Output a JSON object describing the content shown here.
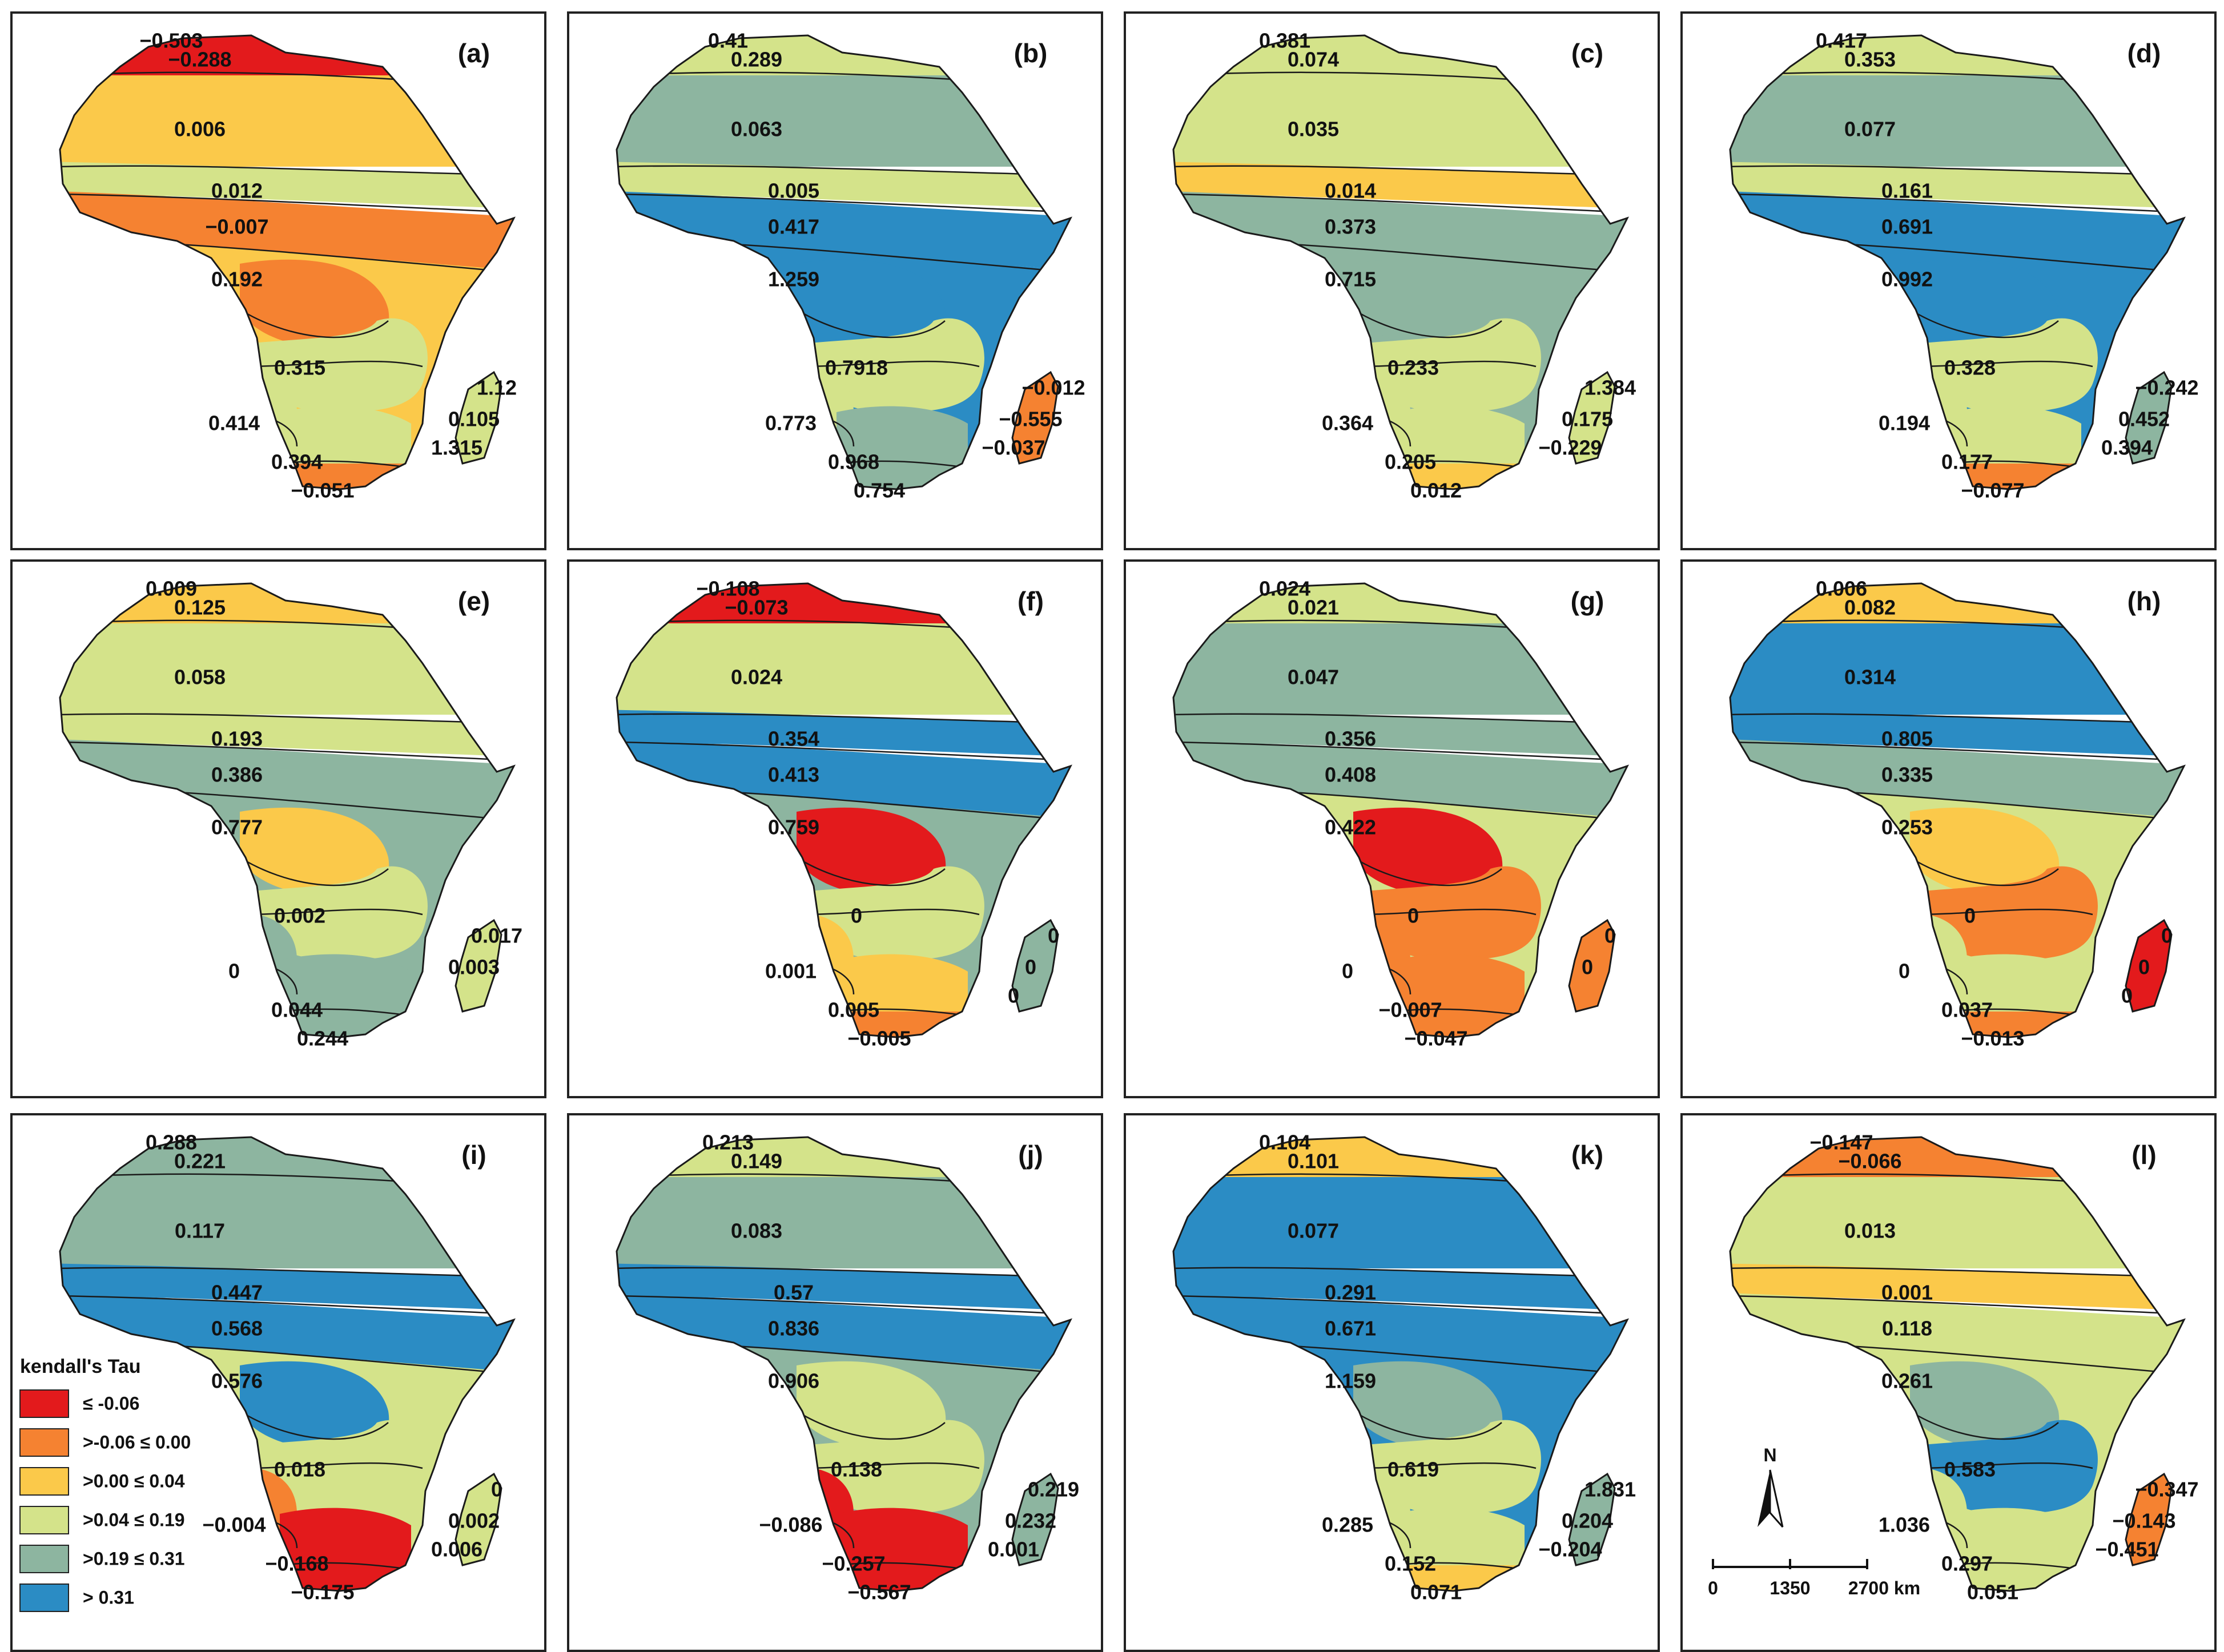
{
  "colors": {
    "cat1": "#e31a1c",
    "cat2": "#f58231",
    "cat3": "#fbc94a",
    "cat4": "#d4e38a",
    "cat5": "#8db5a0",
    "cat6": "#2b8cc4"
  },
  "legend": {
    "title": "kendall's Tau",
    "items": [
      {
        "label": "≤ -0.06",
        "color": "#e31a1c"
      },
      {
        "label": ">-0.06 ≤ 0.00",
        "color": "#f58231"
      },
      {
        "label": ">0.00 ≤ 0.04",
        "color": "#fbc94a"
      },
      {
        "label": ">0.04 ≤ 0.19",
        "color": "#d4e38a"
      },
      {
        "label": ">0.19 ≤ 0.31",
        "color": "#8db5a0"
      },
      {
        "label": "> 0.31",
        "color": "#2b8cc4"
      }
    ]
  },
  "north_arrow": "N",
  "scale_bar": {
    "ticks": [
      "0",
      "1350",
      "2700 km"
    ]
  },
  "panels": [
    {
      "id": "(a)",
      "zones": [
        "c1",
        "c3",
        "c4",
        "c2",
        "c3",
        "c2",
        "c4",
        "c4",
        "c4",
        "c2"
      ],
      "madagascar": [
        "c4",
        "c4",
        "c4"
      ],
      "labels": [
        "−0.503",
        "−0.288",
        "0.006",
        "0.012",
        "−0.007",
        "0.192",
        "0.315",
        "0.414",
        "0.394",
        "−0.051",
        "1.12",
        "0.105",
        "1.315"
      ]
    },
    {
      "id": "(b)",
      "zones": [
        "c4",
        "c5",
        "c4",
        "c6",
        "c6",
        "c6",
        "c4",
        "c4",
        "c5",
        "c5"
      ],
      "madagascar": [
        "c2",
        "c2",
        "c2"
      ],
      "labels": [
        "0.41",
        "0.289",
        "0.063",
        "0.005",
        "0.417",
        "1.259",
        "0.7918",
        "0.773",
        "0.968",
        "0.754",
        "−0.012",
        "−0.555",
        "−0.037"
      ]
    },
    {
      "id": "(c)",
      "zones": [
        "c4",
        "c4",
        "c3",
        "c5",
        "c5",
        "c5",
        "c4",
        "c4",
        "c4",
        "c3"
      ],
      "madagascar": [
        "c4",
        "c4",
        "c4"
      ],
      "labels": [
        "0.381",
        "0.074",
        "0.035",
        "0.014",
        "0.373",
        "0.715",
        "0.233",
        "0.364",
        "0.205",
        "0.012",
        "1.384",
        "0.175",
        "−0.229"
      ]
    },
    {
      "id": "(d)",
      "zones": [
        "c4",
        "c5",
        "c4",
        "c6",
        "c6",
        "c6",
        "c4",
        "c4",
        "c4",
        "c2"
      ],
      "madagascar": [
        "c5",
        "c5",
        "c5"
      ],
      "labels": [
        "0.417",
        "0.353",
        "0.077",
        "0.161",
        "0.691",
        "0.992",
        "0.328",
        "0.194",
        "0.177",
        "−0.077",
        "−0.242",
        "0.452",
        "0.394"
      ]
    },
    {
      "id": "(e)",
      "zones": [
        "c3",
        "c4",
        "c4",
        "c5",
        "c5",
        "c3",
        "c4",
        "c5",
        "c5",
        "c5"
      ],
      "madagascar": [
        "c4",
        "c4",
        "c4"
      ],
      "labels": [
        "0.009",
        "0.125",
        "0.058",
        "0.193",
        "0.386",
        "0.777",
        "0.002",
        "0",
        "0.044",
        "0.244",
        "0.017",
        "0.003"
      ]
    },
    {
      "id": "(f)",
      "zones": [
        "c1",
        "c4",
        "c6",
        "c6",
        "c5",
        "c1",
        "c4",
        "c3",
        "c3",
        "c2"
      ],
      "madagascar": [
        "c5",
        "c5",
        "c5"
      ],
      "labels": [
        "−0.108",
        "−0.073",
        "0.024",
        "0.354",
        "0.413",
        "0.759",
        "0",
        "0.001",
        "0.005",
        "−0.005",
        "0",
        "0",
        "0"
      ]
    },
    {
      "id": "(g)",
      "zones": [
        "c4",
        "c5",
        "c5",
        "c5",
        "c4",
        "c1",
        "c2",
        "c2",
        "c2",
        "c2"
      ],
      "madagascar": [
        "c2",
        "c2",
        "c2"
      ],
      "labels": [
        "0.024",
        "0.021",
        "0.047",
        "0.356",
        "0.408",
        "0.422",
        "0",
        "0",
        "−0.007",
        "−0.047",
        "0",
        "0"
      ]
    },
    {
      "id": "(h)",
      "zones": [
        "c3",
        "c6",
        "c6",
        "c5",
        "c4",
        "c3",
        "c2",
        "c4",
        "c4",
        "c2"
      ],
      "madagascar": [
        "c1",
        "c1",
        "c1"
      ],
      "labels": [
        "0.006",
        "0.082",
        "0.314",
        "0.805",
        "0.335",
        "0.253",
        "0",
        "0",
        "0.037",
        "−0.013",
        "0",
        "0",
        "0"
      ]
    },
    {
      "id": "(i)",
      "zones": [
        "c5",
        "c5",
        "c6",
        "c6",
        "c4",
        "c6",
        "c4",
        "c2",
        "c1",
        "c1"
      ],
      "madagascar": [
        "c4",
        "c4",
        "c4"
      ],
      "labels": [
        "0.288",
        "0.221",
        "0.117",
        "0.447",
        "0.568",
        "0.576",
        "0.018",
        "−0.004",
        "−0.168",
        "−0.175",
        "0",
        "0.002",
        "0.006"
      ]
    },
    {
      "id": "(j)",
      "zones": [
        "c4",
        "c5",
        "c6",
        "c6",
        "c5",
        "c4",
        "c4",
        "c1",
        "c1",
        "c1"
      ],
      "madagascar": [
        "c5",
        "c5",
        "c5"
      ],
      "labels": [
        "0.213",
        "0.149",
        "0.083",
        "0.57",
        "0.836",
        "0.906",
        "0.138",
        "−0.086",
        "−0.257",
        "−0.567",
        "0.219",
        "0.232",
        "0.001"
      ]
    },
    {
      "id": "(k)",
      "zones": [
        "c3",
        "c6",
        "c6",
        "c6",
        "c6",
        "c5",
        "c4",
        "c4",
        "c4",
        "c3"
      ],
      "madagascar": [
        "c5",
        "c5",
        "c5"
      ],
      "labels": [
        "0.104",
        "0.101",
        "0.077",
        "0.291",
        "0.671",
        "1.159",
        "0.619",
        "0.285",
        "0.152",
        "0.071",
        "1.831",
        "0.204",
        "−0.204"
      ]
    },
    {
      "id": "(l)",
      "zones": [
        "c2",
        "c4",
        "c3",
        "c4",
        "c4",
        "c5",
        "c6",
        "c4",
        "c4",
        "c4"
      ],
      "madagascar": [
        "c2",
        "c2",
        "c2"
      ],
      "labels": [
        "−0.147",
        "−0.066",
        "0.013",
        "0.001",
        "0.118",
        "0.261",
        "0.583",
        "1.036",
        "0.297",
        "0.051",
        "−0.347",
        "−0.143",
        "−0.451"
      ]
    }
  ]
}
